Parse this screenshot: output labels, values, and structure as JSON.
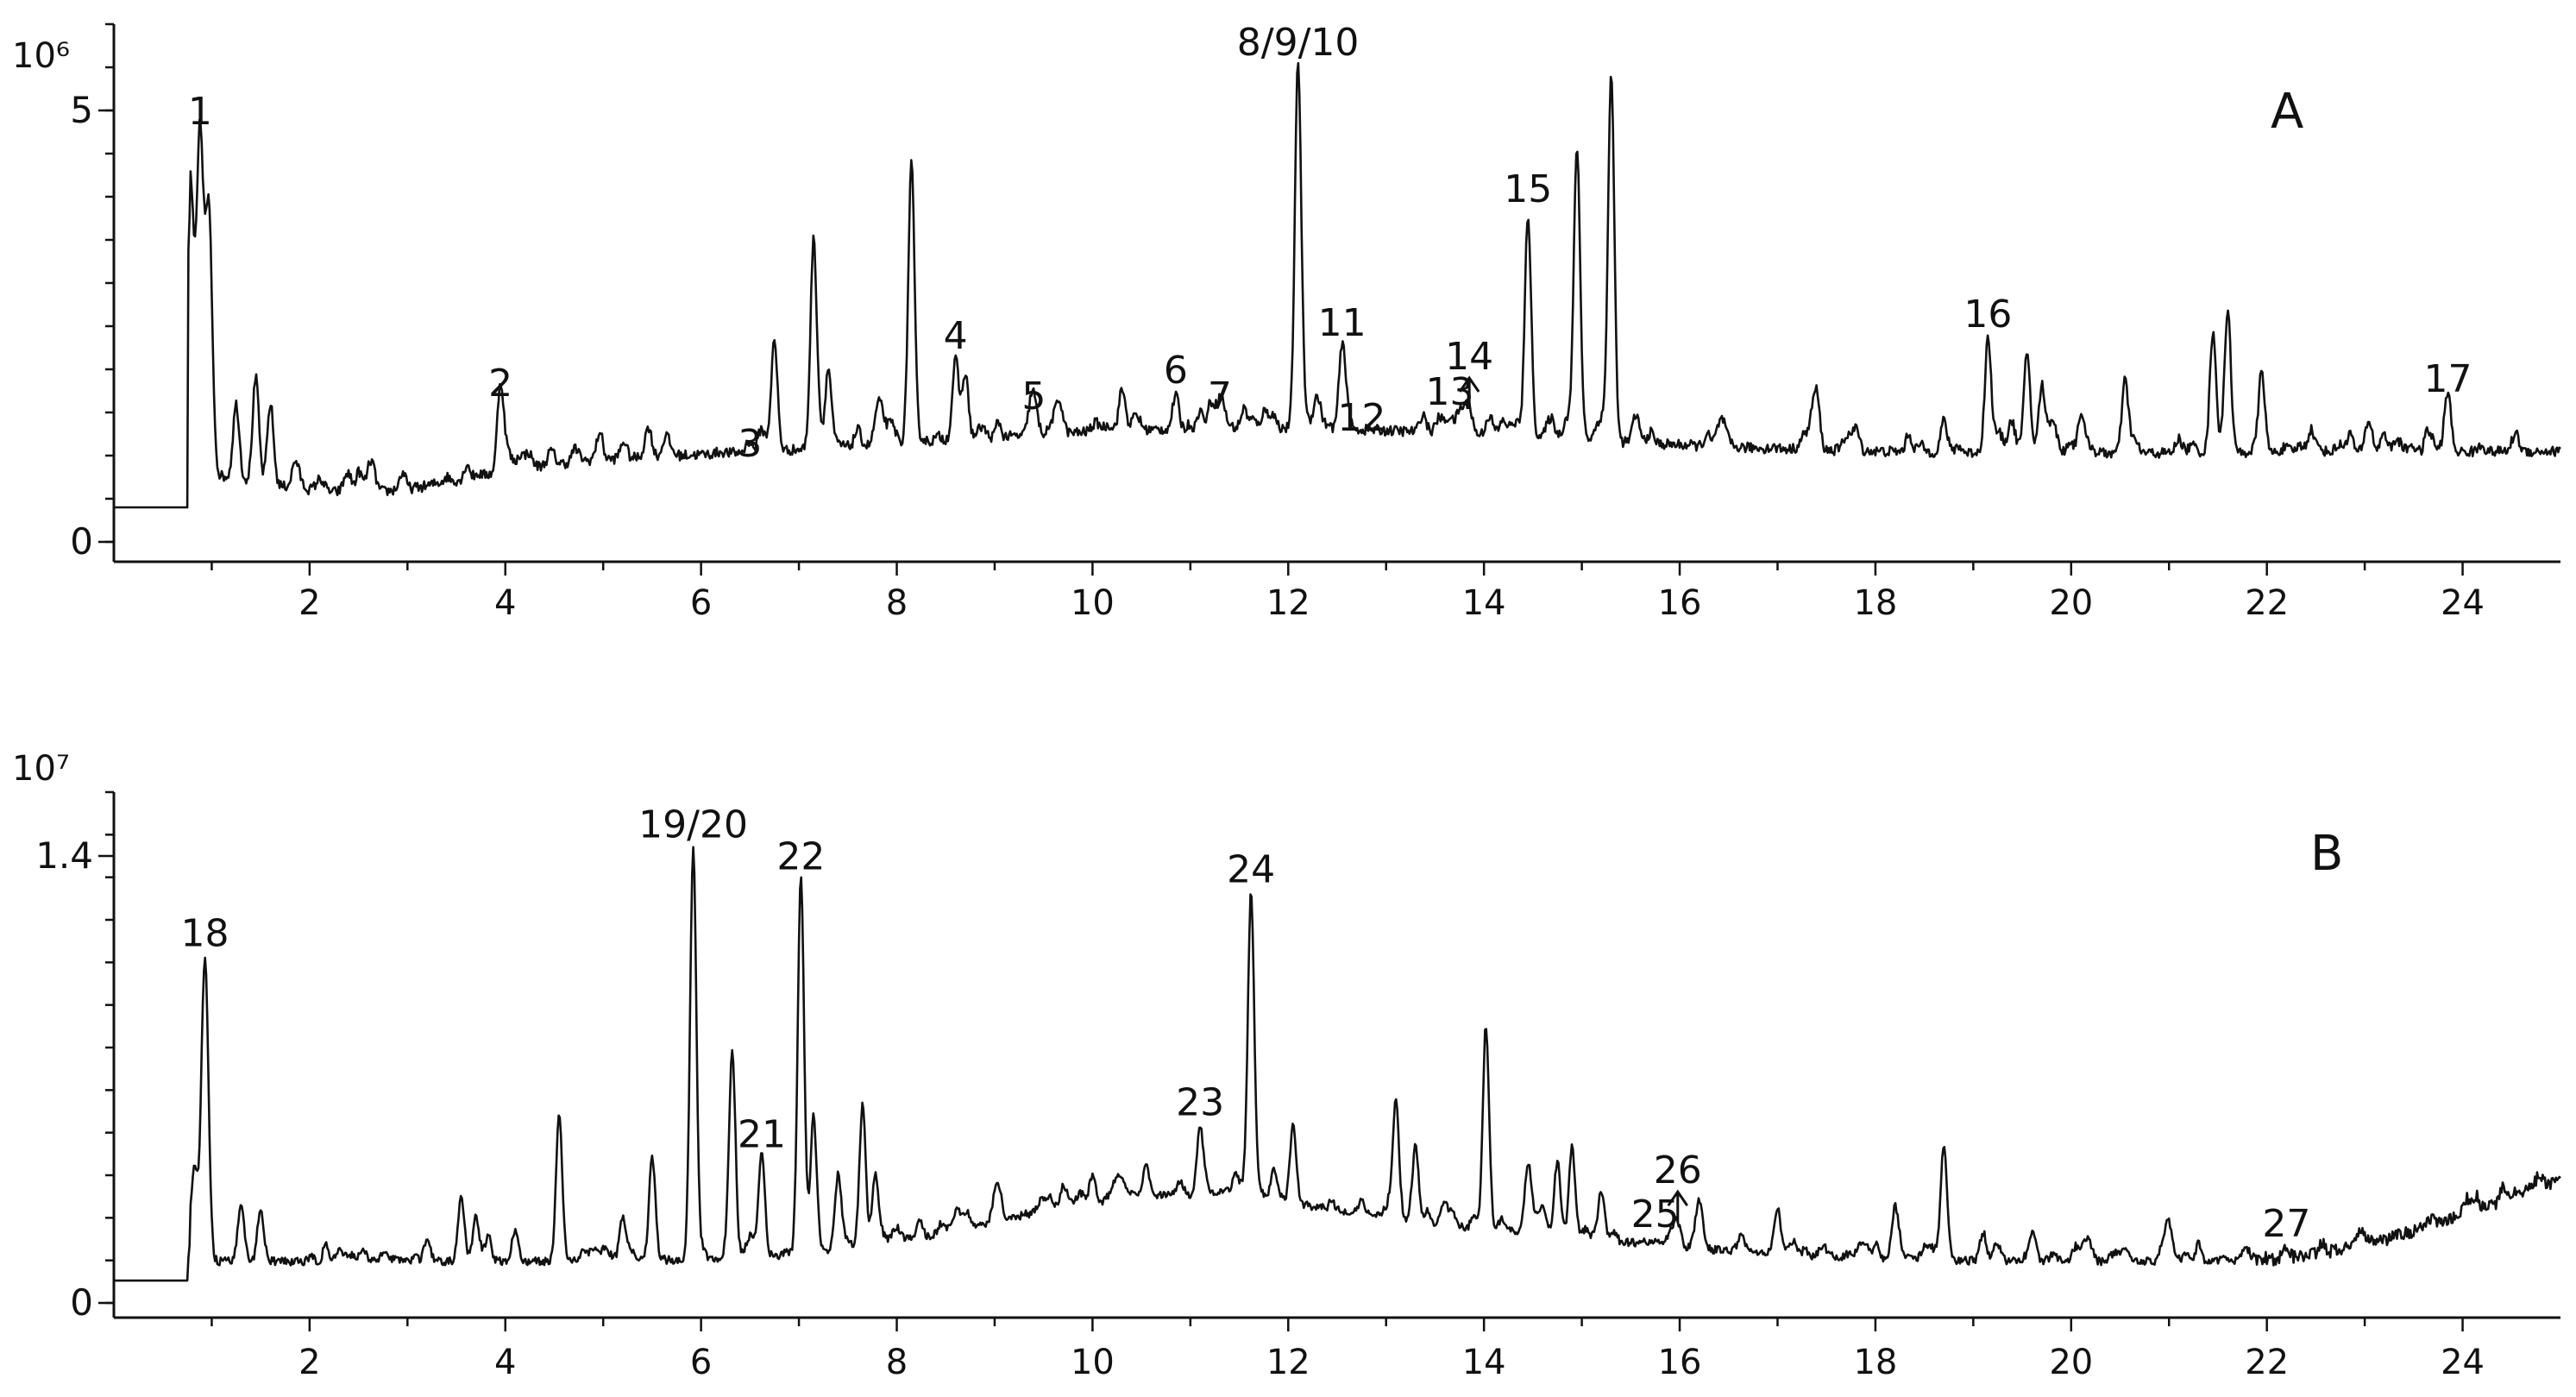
{
  "chart_data": [
    {
      "type": "line",
      "panel_label": "A",
      "y_exponent": "10⁶",
      "y_ticks": [
        "5",
        "0"
      ],
      "y_tick_values": [
        5,
        0
      ],
      "ylim": [
        0,
        6
      ],
      "xlim": [
        0,
        25
      ],
      "x_ticks": [
        "2",
        "4",
        "6",
        "8",
        "10",
        "12",
        "14",
        "16",
        "18",
        "20",
        "22",
        "24"
      ],
      "x_tick_values": [
        2,
        4,
        6,
        8,
        10,
        12,
        14,
        16,
        18,
        20,
        22,
        24
      ],
      "baseline": 0.4,
      "peaks": [
        {
          "x": 0.78,
          "y": 4.2
        },
        {
          "x": 0.88,
          "y": 4.7,
          "label": "1"
        },
        {
          "x": 0.97,
          "y": 3.8
        },
        {
          "x": 1.25,
          "y": 1.6
        },
        {
          "x": 1.45,
          "y": 1.9
        },
        {
          "x": 1.6,
          "y": 1.6
        },
        {
          "x": 1.85,
          "y": 0.8
        },
        {
          "x": 2.95,
          "y": 0.8
        },
        {
          "x": 3.4,
          "y": 0.75
        },
        {
          "x": 3.7,
          "y": 0.7
        },
        {
          "x": 3.95,
          "y": 1.55,
          "label": "2"
        },
        {
          "x": 4.15,
          "y": 1.0
        },
        {
          "x": 4.75,
          "y": 1.0
        },
        {
          "x": 5.2,
          "y": 1.1
        },
        {
          "x": 5.6,
          "y": 0.75
        },
        {
          "x": 6.2,
          "y": 1.0
        },
        {
          "x": 6.5,
          "y": 0.85,
          "label": "3"
        },
        {
          "x": 6.75,
          "y": 2.2
        },
        {
          "x": 7.15,
          "y": 3.5
        },
        {
          "x": 7.3,
          "y": 2.0
        },
        {
          "x": 7.6,
          "y": 1.3
        },
        {
          "x": 7.85,
          "y": 1.4
        },
        {
          "x": 8.15,
          "y": 4.2
        },
        {
          "x": 8.6,
          "y": 2.1,
          "label": "4"
        },
        {
          "x": 8.7,
          "y": 1.95
        },
        {
          "x": 9.1,
          "y": 1.2
        },
        {
          "x": 9.4,
          "y": 1.4,
          "label": "5"
        },
        {
          "x": 10.3,
          "y": 1.7
        },
        {
          "x": 10.85,
          "y": 1.7,
          "label": "6"
        },
        {
          "x": 11.3,
          "y": 1.4,
          "label": "7"
        },
        {
          "x": 11.55,
          "y": 1.55
        },
        {
          "x": 11.85,
          "y": 1.45
        },
        {
          "x": 12.1,
          "y": 5.5,
          "label": "8/9/10"
        },
        {
          "x": 12.55,
          "y": 2.25,
          "label": "11"
        },
        {
          "x": 12.75,
          "y": 1.15,
          "label": "12"
        },
        {
          "x": 13.4,
          "y": 1.2
        },
        {
          "x": 13.65,
          "y": 1.45,
          "label": "13"
        },
        {
          "x": 13.85,
          "y": 1.5,
          "label": "14",
          "arrow": true
        },
        {
          "x": 14.45,
          "y": 3.8,
          "label": "15"
        },
        {
          "x": 14.95,
          "y": 4.55
        },
        {
          "x": 15.3,
          "y": 5.35
        },
        {
          "x": 15.55,
          "y": 1.4
        },
        {
          "x": 17.4,
          "y": 1.7
        },
        {
          "x": 18.7,
          "y": 1.4
        },
        {
          "x": 19.15,
          "y": 2.35,
          "label": "16"
        },
        {
          "x": 19.55,
          "y": 2.2
        },
        {
          "x": 19.7,
          "y": 1.8
        },
        {
          "x": 20.1,
          "y": 1.5
        },
        {
          "x": 20.55,
          "y": 1.85
        },
        {
          "x": 21.1,
          "y": 1.2
        },
        {
          "x": 21.45,
          "y": 2.45
        },
        {
          "x": 21.6,
          "y": 2.5
        },
        {
          "x": 21.95,
          "y": 1.65
        },
        {
          "x": 22.45,
          "y": 1.3
        },
        {
          "x": 22.85,
          "y": 1.25
        },
        {
          "x": 23.85,
          "y": 1.6,
          "label": "17"
        }
      ]
    },
    {
      "type": "line",
      "panel_label": "B",
      "y_exponent": "10⁷",
      "y_ticks": [
        "1.4",
        "0"
      ],
      "y_tick_values": [
        1.4,
        0
      ],
      "ylim": [
        0,
        1.6
      ],
      "xlim": [
        0,
        25
      ],
      "x_ticks": [
        "2",
        "4",
        "6",
        "8",
        "10",
        "12",
        "14",
        "16",
        "18",
        "20",
        "22",
        "24"
      ],
      "x_tick_values": [
        2,
        4,
        6,
        8,
        10,
        12,
        14,
        16,
        18,
        20,
        22,
        24
      ],
      "baseline": 0.07,
      "peaks": [
        {
          "x": 0.82,
          "y": 0.42
        },
        {
          "x": 0.93,
          "y": 1.08,
          "label": "18"
        },
        {
          "x": 1.3,
          "y": 0.32
        },
        {
          "x": 1.5,
          "y": 0.3
        },
        {
          "x": 2.3,
          "y": 0.16
        },
        {
          "x": 2.8,
          "y": 0.15
        },
        {
          "x": 3.2,
          "y": 0.2
        },
        {
          "x": 3.55,
          "y": 0.33
        },
        {
          "x": 3.7,
          "y": 0.27
        },
        {
          "x": 4.1,
          "y": 0.22
        },
        {
          "x": 4.55,
          "y": 0.55
        },
        {
          "x": 5.2,
          "y": 0.26
        },
        {
          "x": 5.5,
          "y": 0.46
        },
        {
          "x": 5.92,
          "y": 1.42,
          "label": "19/20"
        },
        {
          "x": 6.32,
          "y": 0.78
        },
        {
          "x": 6.62,
          "y": 0.45,
          "label": "21"
        },
        {
          "x": 7.02,
          "y": 1.32,
          "label": "22"
        },
        {
          "x": 7.15,
          "y": 0.58
        },
        {
          "x": 7.4,
          "y": 0.4
        },
        {
          "x": 7.65,
          "y": 0.62
        },
        {
          "x": 7.78,
          "y": 0.4
        },
        {
          "x": 8.6,
          "y": 0.28
        },
        {
          "x": 9.0,
          "y": 0.3
        },
        {
          "x": 9.7,
          "y": 0.36
        },
        {
          "x": 10.0,
          "y": 0.4
        },
        {
          "x": 10.55,
          "y": 0.42
        },
        {
          "x": 10.9,
          "y": 0.38
        },
        {
          "x": 11.1,
          "y": 0.55,
          "label": "23"
        },
        {
          "x": 11.62,
          "y": 1.28,
          "label": "24"
        },
        {
          "x": 11.85,
          "y": 0.42
        },
        {
          "x": 12.05,
          "y": 0.56
        },
        {
          "x": 12.75,
          "y": 0.32
        },
        {
          "x": 13.1,
          "y": 0.62
        },
        {
          "x": 13.3,
          "y": 0.48
        },
        {
          "x": 13.6,
          "y": 0.32
        },
        {
          "x": 14.02,
          "y": 0.86
        },
        {
          "x": 14.45,
          "y": 0.4
        },
        {
          "x": 14.75,
          "y": 0.42
        },
        {
          "x": 14.9,
          "y": 0.44
        },
        {
          "x": 15.2,
          "y": 0.32
        },
        {
          "x": 15.55,
          "y": 0.18
        },
        {
          "x": 15.75,
          "y": 0.2,
          "label": "25"
        },
        {
          "x": 15.98,
          "y": 0.24,
          "label": "26",
          "arrow": true
        },
        {
          "x": 16.2,
          "y": 0.28
        },
        {
          "x": 17.0,
          "y": 0.3
        },
        {
          "x": 18.2,
          "y": 0.27
        },
        {
          "x": 18.7,
          "y": 0.5
        },
        {
          "x": 19.1,
          "y": 0.22
        },
        {
          "x": 21.0,
          "y": 0.2
        },
        {
          "x": 22.2,
          "y": 0.17,
          "label": "27"
        },
        {
          "x": 23.55,
          "y": 0.24
        }
      ]
    }
  ]
}
